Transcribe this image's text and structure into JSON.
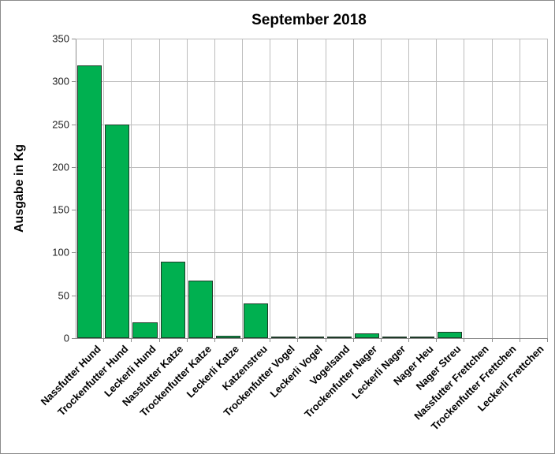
{
  "chart_data": {
    "type": "bar",
    "title": "September 2018",
    "xlabel": "",
    "ylabel": "Ausgabe in Kg",
    "ylim": [
      0,
      350
    ],
    "yticks": [
      0,
      50,
      100,
      150,
      200,
      250,
      300,
      350
    ],
    "grid": true,
    "legend": "none",
    "bar_color": "#00b050",
    "categories": [
      "Nassfutter Hund",
      "Trockenfutter Hund",
      "Leckerli Hund",
      "Nassfutter Katze",
      "Trockenfutter Katze",
      "Leckerli Katze",
      "Katzenstreu",
      "Trockenfutter Vogel",
      "Leckerli Vogel",
      "Vogelsand",
      "Trockenfutter Nager",
      "Leckerli Nager",
      "Nager Heu",
      "Nager Streu",
      "Nassfutter Frettchen",
      "Trockenfutter Frettchen",
      "Leckerli Frettchen"
    ],
    "values": [
      319,
      250,
      18,
      89,
      67,
      3,
      41,
      2,
      0.3,
      1,
      6,
      1,
      0.3,
      7,
      0,
      0,
      0
    ]
  }
}
